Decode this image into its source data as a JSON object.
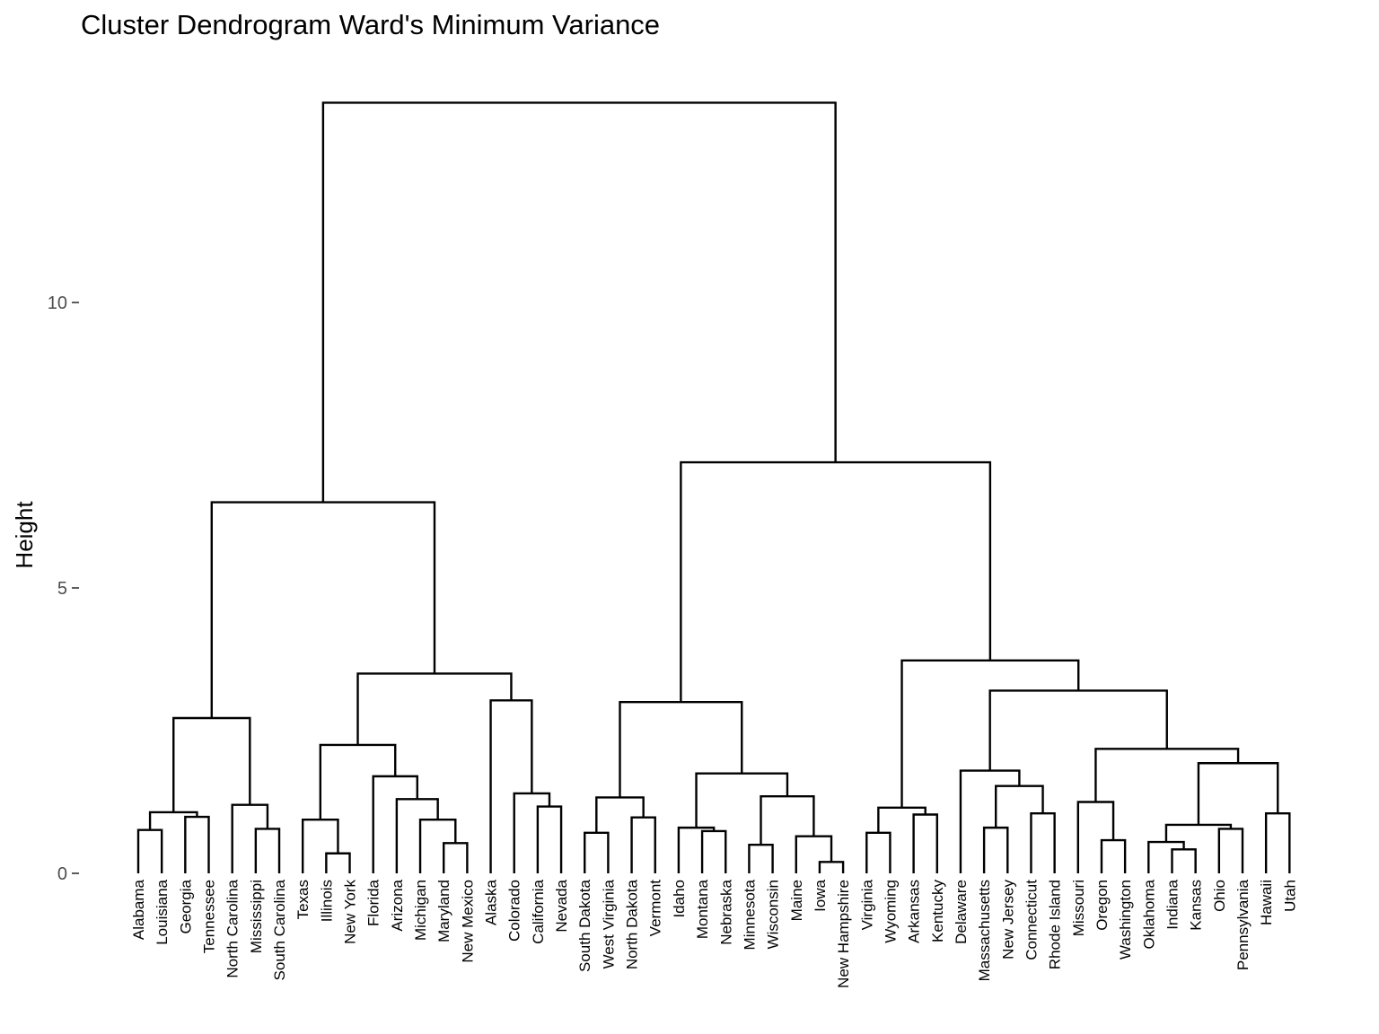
{
  "chart_data": {
    "type": "dendrogram",
    "title": "Cluster Dendrogram Ward's Minimum Variance",
    "xlabel": "",
    "ylabel": "Height",
    "ylim": [
      -0.1,
      13.3
    ],
    "y_ticks": [
      0,
      5,
      10
    ],
    "grid": false,
    "leaves": [
      "Alabama",
      "Louisiana",
      "Georgia",
      "Tennessee",
      "North Carolina",
      "Mississippi",
      "South Carolina",
      "Texas",
      "Illinois",
      "New York",
      "Florida",
      "Arizona",
      "Michigan",
      "Maryland",
      "New Mexico",
      "Alaska",
      "Colorado",
      "California",
      "Nevada",
      "South Dakota",
      "West Virginia",
      "North Dakota",
      "Vermont",
      "Idaho",
      "Montana",
      "Nebraska",
      "Minnesota",
      "Wisconsin",
      "Maine",
      "Iowa",
      "New Hampshire",
      "Virginia",
      "Wyoming",
      "Arkansas",
      "Kentucky",
      "Delaware",
      "Massachusetts",
      "New Jersey",
      "Connecticut",
      "Rhode Island",
      "Missouri",
      "Oregon",
      "Washington",
      "Oklahoma",
      "Indiana",
      "Kansas",
      "Ohio",
      "Pennsylvania",
      "Hawaii",
      "Utah"
    ],
    "merges": [
      {
        "id": "c1",
        "left": "Alabama",
        "right": "Louisiana",
        "height": 0.76
      },
      {
        "id": "c2",
        "left": "Georgia",
        "right": "Tennessee",
        "height": 0.99
      },
      {
        "id": "c3",
        "left": "c1",
        "right": "c2",
        "height": 1.07
      },
      {
        "id": "c4",
        "left": "Mississippi",
        "right": "South Carolina",
        "height": 0.78
      },
      {
        "id": "c5",
        "left": "North Carolina",
        "right": "c4",
        "height": 1.2
      },
      {
        "id": "c6",
        "left": "c3",
        "right": "c5",
        "height": 2.72
      },
      {
        "id": "c7",
        "left": "Illinois",
        "right": "New York",
        "height": 0.35
      },
      {
        "id": "c8",
        "left": "Texas",
        "right": "c7",
        "height": 0.94
      },
      {
        "id": "c9",
        "left": "Maryland",
        "right": "New Mexico",
        "height": 0.53
      },
      {
        "id": "c10",
        "left": "Michigan",
        "right": "c9",
        "height": 0.94
      },
      {
        "id": "c11",
        "left": "Arizona",
        "right": "c10",
        "height": 1.3
      },
      {
        "id": "c12",
        "left": "Florida",
        "right": "c11",
        "height": 1.7
      },
      {
        "id": "c13",
        "left": "c8",
        "right": "c12",
        "height": 2.25
      },
      {
        "id": "c14",
        "left": "California",
        "right": "Nevada",
        "height": 1.17
      },
      {
        "id": "c15",
        "left": "Colorado",
        "right": "c14",
        "height": 1.4
      },
      {
        "id": "c16",
        "left": "Alaska",
        "right": "c15",
        "height": 3.03
      },
      {
        "id": "c17",
        "left": "c13",
        "right": "c16",
        "height": 3.5
      },
      {
        "id": "c18",
        "left": "c6",
        "right": "c17",
        "height": 6.5
      },
      {
        "id": "c19",
        "left": "South Dakota",
        "right": "West Virginia",
        "height": 0.71
      },
      {
        "id": "c20",
        "left": "North Dakota",
        "right": "Vermont",
        "height": 0.98
      },
      {
        "id": "c21",
        "left": "c19",
        "right": "c20",
        "height": 1.33
      },
      {
        "id": "c22",
        "left": "Montana",
        "right": "Nebraska",
        "height": 0.74
      },
      {
        "id": "c23",
        "left": "Idaho",
        "right": "c22",
        "height": 0.8
      },
      {
        "id": "c24",
        "left": "Minnesota",
        "right": "Wisconsin",
        "height": 0.5
      },
      {
        "id": "c25",
        "left": "Iowa",
        "right": "New Hampshire",
        "height": 0.2
      },
      {
        "id": "c26",
        "left": "Maine",
        "right": "c25",
        "height": 0.65
      },
      {
        "id": "c27",
        "left": "c24",
        "right": "c26",
        "height": 1.35
      },
      {
        "id": "c28",
        "left": "c23",
        "right": "c27",
        "height": 1.75
      },
      {
        "id": "c29",
        "left": "c21",
        "right": "c28",
        "height": 3.0
      },
      {
        "id": "c30",
        "left": "Virginia",
        "right": "Wyoming",
        "height": 0.71
      },
      {
        "id": "c31",
        "left": "Arkansas",
        "right": "Kentucky",
        "height": 1.03
      },
      {
        "id": "c32",
        "left": "c30",
        "right": "c31",
        "height": 1.15
      },
      {
        "id": "c33",
        "left": "Massachusetts",
        "right": "New Jersey",
        "height": 0.8
      },
      {
        "id": "c34",
        "left": "Connecticut",
        "right": "Rhode Island",
        "height": 1.05
      },
      {
        "id": "c35",
        "left": "c33",
        "right": "c34",
        "height": 1.53
      },
      {
        "id": "c36",
        "left": "Delaware",
        "right": "c35",
        "height": 1.8
      },
      {
        "id": "c37",
        "left": "Oregon",
        "right": "Washington",
        "height": 0.58
      },
      {
        "id": "c38",
        "left": "Missouri",
        "right": "c37",
        "height": 1.25
      },
      {
        "id": "c39",
        "left": "Indiana",
        "right": "Kansas",
        "height": 0.42
      },
      {
        "id": "c40",
        "left": "Oklahoma",
        "right": "c39",
        "height": 0.55
      },
      {
        "id": "c41",
        "left": "Ohio",
        "right": "Pennsylvania",
        "height": 0.78
      },
      {
        "id": "c42",
        "left": "c40",
        "right": "c41",
        "height": 0.85
      },
      {
        "id": "c43",
        "left": "Hawaii",
        "right": "Utah",
        "height": 1.05
      },
      {
        "id": "c44",
        "left": "c42",
        "right": "c43",
        "height": 1.93
      },
      {
        "id": "c45",
        "left": "c38",
        "right": "c44",
        "height": 2.18
      },
      {
        "id": "c46",
        "left": "c36",
        "right": "c45",
        "height": 3.2
      },
      {
        "id": "c47",
        "left": "c32",
        "right": "c46",
        "height": 3.73
      },
      {
        "id": "c48",
        "left": "c29",
        "right": "c47",
        "height": 7.2
      },
      {
        "id": "c49",
        "left": "c18",
        "right": "c48",
        "height": 13.5
      }
    ]
  }
}
